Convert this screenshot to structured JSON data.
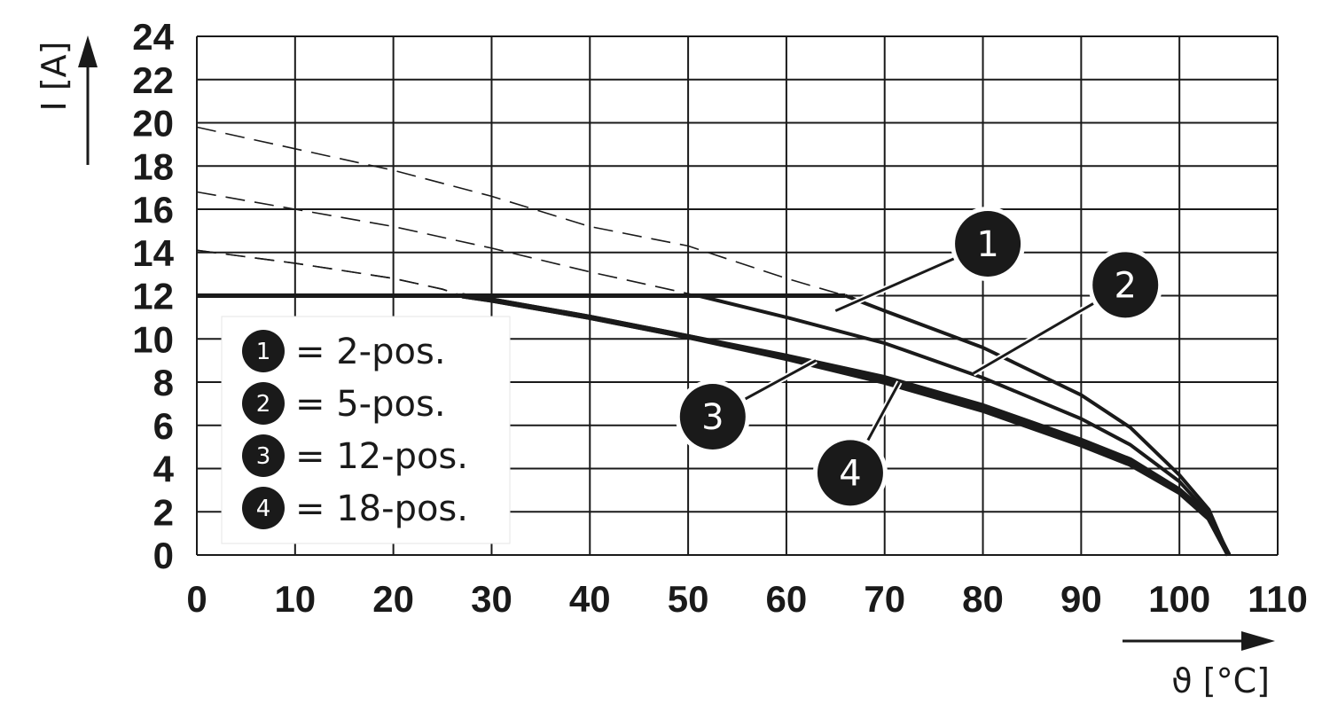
{
  "chart_data": {
    "type": "line",
    "xlabel": "ϑ [°C]",
    "ylabel": "I [A]",
    "xlim": [
      0,
      110
    ],
    "ylim": [
      0,
      24
    ],
    "xticks": [
      "0",
      "10",
      "20",
      "30",
      "40",
      "50",
      "60",
      "70",
      "80",
      "90",
      "100",
      "110"
    ],
    "yticks": [
      "0",
      "2",
      "4",
      "6",
      "8",
      "10",
      "12",
      "14",
      "16",
      "18",
      "20",
      "22",
      "24"
    ],
    "grid": true,
    "legend_position": "bottom-left",
    "current_limit": 12,
    "series": [
      {
        "id": "1",
        "name": "2-pos.",
        "values": [
          [
            0,
            19.8
          ],
          [
            10,
            18.8
          ],
          [
            20,
            17.8
          ],
          [
            30,
            16.6
          ],
          [
            40,
            15.2
          ],
          [
            50,
            14.3
          ],
          [
            60,
            12.8
          ],
          [
            66,
            12
          ],
          [
            70,
            11.3
          ],
          [
            80,
            9.6
          ],
          [
            90,
            7.4
          ],
          [
            95,
            5.9
          ],
          [
            100,
            3.7
          ],
          [
            103,
            2.1
          ],
          [
            105,
            0
          ]
        ]
      },
      {
        "id": "2",
        "name": "5-pos.",
        "values": [
          [
            0,
            16.8
          ],
          [
            10,
            16.0
          ],
          [
            20,
            15.2
          ],
          [
            30,
            14.2
          ],
          [
            40,
            13.1
          ],
          [
            50,
            12.1
          ],
          [
            51,
            12
          ],
          [
            60,
            11.0
          ],
          [
            70,
            9.8
          ],
          [
            80,
            8.2
          ],
          [
            90,
            6.3
          ],
          [
            95,
            5.1
          ],
          [
            100,
            3.4
          ],
          [
            103,
            1.9
          ],
          [
            105,
            0
          ]
        ]
      },
      {
        "id": "3",
        "name": "12-pos.",
        "values": [
          [
            0,
            14.1
          ],
          [
            10,
            13.5
          ],
          [
            20,
            12.8
          ],
          [
            25,
            12.3
          ],
          [
            27,
            12
          ],
          [
            30,
            11.8
          ],
          [
            40,
            11.0
          ],
          [
            50,
            10.1
          ],
          [
            60,
            9.2
          ],
          [
            70,
            8.2
          ],
          [
            80,
            6.9
          ],
          [
            90,
            5.3
          ],
          [
            95,
            4.4
          ],
          [
            100,
            3.0
          ],
          [
            103,
            1.8
          ],
          [
            105,
            0
          ]
        ]
      },
      {
        "id": "4",
        "name": "18-pos.",
        "values": [
          [
            0,
            14.1
          ],
          [
            10,
            13.5
          ],
          [
            20,
            12.8
          ],
          [
            25,
            12.3
          ],
          [
            27,
            12
          ],
          [
            30,
            11.8
          ],
          [
            40,
            11.0
          ],
          [
            50,
            10.1
          ],
          [
            60,
            9.1
          ],
          [
            70,
            8.0
          ],
          [
            80,
            6.7
          ],
          [
            90,
            5.1
          ],
          [
            95,
            4.2
          ],
          [
            100,
            2.9
          ],
          [
            103,
            1.7
          ],
          [
            105,
            0
          ]
        ]
      }
    ],
    "legend": [
      {
        "num": "1",
        "text": "= 2-pos."
      },
      {
        "num": "2",
        "text": "= 5-pos."
      },
      {
        "num": "3",
        "text": "= 12-pos."
      },
      {
        "num": "4",
        "text": "= 18-pos."
      }
    ],
    "callouts": [
      {
        "num": "1",
        "at": [
          65,
          11.3
        ],
        "text_at": [
          80.5,
          14.4
        ]
      },
      {
        "num": "2",
        "at": [
          79,
          8.4
        ],
        "text_at": [
          94.5,
          12.5
        ]
      },
      {
        "num": "3",
        "at": [
          63,
          9.0
        ],
        "text_at": [
          52.5,
          6.4
        ]
      },
      {
        "num": "4",
        "at": [
          71.5,
          8.0
        ],
        "text_at": [
          66.5,
          3.8
        ]
      }
    ],
    "colors": {
      "line": "#1a1a1a",
      "grid": "#1a1a1a",
      "marker": "#1a1a1a"
    }
  }
}
